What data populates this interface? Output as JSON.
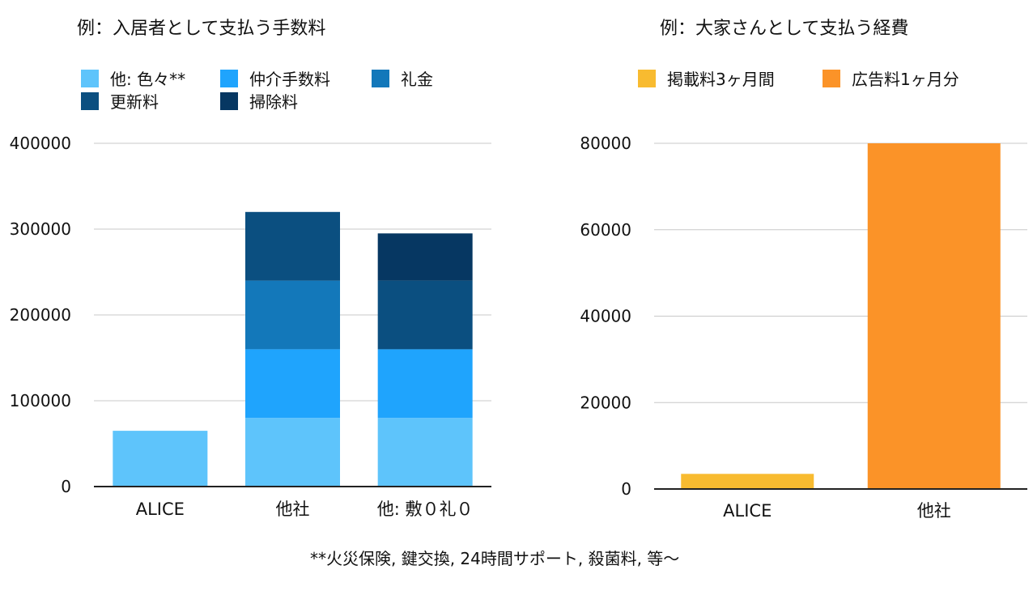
{
  "chart_data": [
    {
      "type": "bar",
      "stacked": true,
      "title": "例：入居者として支払う手数料",
      "categories": [
        "ALICE",
        "他社",
        "他: 敷０礼０"
      ],
      "ylim": [
        0,
        400000
      ],
      "yticks": [
        0,
        100000,
        200000,
        300000,
        400000
      ],
      "grid": true,
      "legend_position": "top",
      "series": [
        {
          "name": "他: 色々**",
          "color": "#5ec4fb",
          "values": [
            65000,
            80000,
            80000
          ]
        },
        {
          "name": "仲介手数料",
          "color": "#1fa4fd",
          "values": [
            0,
            80000,
            80000
          ]
        },
        {
          "name": "礼金",
          "color": "#1378ba",
          "values": [
            0,
            80000,
            0
          ]
        },
        {
          "name": "更新料",
          "color": "#0b4f80",
          "values": [
            0,
            80000,
            80000
          ]
        },
        {
          "name": "掃除料",
          "color": "#063762",
          "values": [
            0,
            0,
            55000
          ]
        }
      ]
    },
    {
      "type": "bar",
      "stacked": true,
      "title": "例：大家さんとして支払う経費",
      "categories": [
        "ALICE",
        "他社"
      ],
      "ylim": [
        0,
        80000
      ],
      "yticks": [
        0,
        20000,
        40000,
        60000,
        80000
      ],
      "grid": true,
      "legend_position": "top",
      "series": [
        {
          "name": "掲載料3ヶ月間",
          "color": "#f8bb30",
          "values": [
            3500,
            0
          ]
        },
        {
          "name": "広告料1ヶ月分",
          "color": "#fb9328",
          "values": [
            0,
            80000
          ]
        }
      ]
    }
  ],
  "footnote": "**火災保険, 鍵交換, 24時間サポート, 殺菌料, 等〜"
}
